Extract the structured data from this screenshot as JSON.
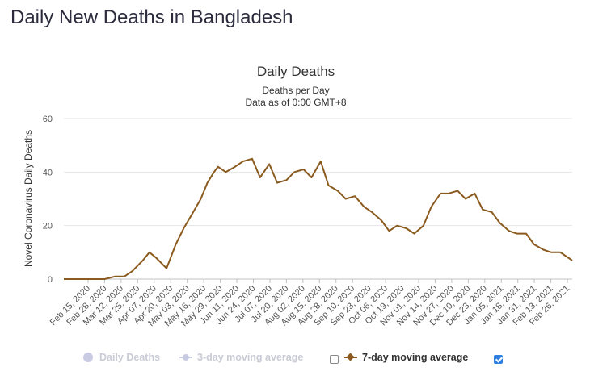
{
  "page": {
    "heading": "Daily New Deaths in Bangladesh"
  },
  "legend": {
    "items": [
      {
        "label": "Daily Deaths",
        "active": false
      },
      {
        "label": "3-day moving average",
        "active": false
      },
      {
        "label": "7-day moving average",
        "active": true
      }
    ]
  },
  "colors": {
    "series_line": "#8a5a1e",
    "grid": "#e6e6e6",
    "inactive_legend": "#c9cbe3",
    "checkbox_checked": "#2d7fe0"
  },
  "chart_data": {
    "type": "line",
    "title": "Daily Deaths",
    "subtitle": [
      "Deaths per Day",
      "Data as of 0:00 GMT+8"
    ],
    "ylabel": "Novel Coronavirus Daily Deaths",
    "xlabel": "",
    "ylim": [
      0,
      60
    ],
    "yticks": [
      0,
      20,
      40,
      60
    ],
    "grid": true,
    "legend_position": "bottom",
    "x_range": [
      "2020-02-15",
      "2021-03-07"
    ],
    "x_tick_labels": [
      "Feb 15, 2020",
      "Feb 28, 2020",
      "Mar 12, 2020",
      "Mar 25, 2020",
      "Apr 07, 2020",
      "Apr 20, 2020",
      "May 03, 2020",
      "May 16, 2020",
      "May 29, 2020",
      "Jun 11, 2020",
      "Jun 24, 2020",
      "Jul 07, 2020",
      "Jul 20, 2020",
      "Aug 02, 2020",
      "Aug 15, 2020",
      "Aug 28, 2020",
      "Sep 10, 2020",
      "Sep 23, 2020",
      "Oct 06, 2020",
      "Oct 19, 2020",
      "Nov 01, 2020",
      "Nov 14, 2020",
      "Nov 27, 2020",
      "Dec 10, 2020",
      "Dec 23, 2020",
      "Jan 05, 2021",
      "Jan 18, 2021",
      "Jan 31, 2021",
      "Feb 13, 2021",
      "Feb 26, 2021"
    ],
    "series": [
      {
        "name": "7-day moving average",
        "x": [
          "2020-02-15",
          "2020-03-17",
          "2020-03-25",
          "2020-04-01",
          "2020-04-07",
          "2020-04-15",
          "2020-04-20",
          "2020-04-25",
          "2020-05-03",
          "2020-05-10",
          "2020-05-16",
          "2020-05-22",
          "2020-05-29",
          "2020-06-03",
          "2020-06-08",
          "2020-06-11",
          "2020-06-17",
          "2020-06-24",
          "2020-06-30",
          "2020-07-07",
          "2020-07-13",
          "2020-07-20",
          "2020-07-26",
          "2020-08-02",
          "2020-08-08",
          "2020-08-15",
          "2020-08-21",
          "2020-08-28",
          "2020-09-03",
          "2020-09-10",
          "2020-09-16",
          "2020-09-23",
          "2020-09-30",
          "2020-10-06",
          "2020-10-13",
          "2020-10-19",
          "2020-10-25",
          "2020-11-01",
          "2020-11-07",
          "2020-11-14",
          "2020-11-20",
          "2020-11-27",
          "2020-12-03",
          "2020-12-10",
          "2020-12-16",
          "2020-12-23",
          "2020-12-29",
          "2021-01-05",
          "2021-01-11",
          "2021-01-18",
          "2021-01-24",
          "2021-01-31",
          "2021-02-06",
          "2021-02-13",
          "2021-02-19",
          "2021-02-26",
          "2021-03-04",
          "2021-03-07"
        ],
        "values": [
          0,
          0,
          1,
          1,
          3,
          7,
          10,
          8,
          4,
          13,
          19,
          24,
          30,
          36,
          40,
          42,
          40,
          42,
          44,
          45,
          38,
          43,
          36,
          37,
          40,
          41,
          38,
          44,
          35,
          33,
          30,
          31,
          27,
          25,
          22,
          18,
          20,
          19,
          17,
          20,
          27,
          32,
          32,
          33,
          30,
          32,
          26,
          25,
          21,
          18,
          17,
          17,
          13,
          11,
          10,
          10,
          8,
          7
        ]
      }
    ]
  }
}
